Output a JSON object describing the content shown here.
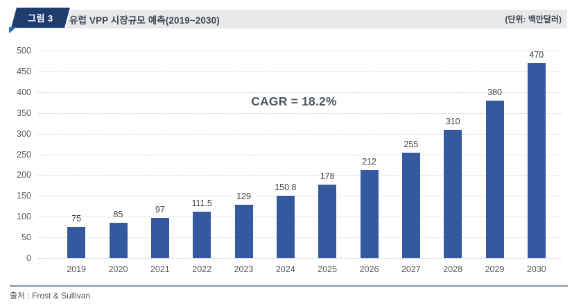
{
  "header": {
    "badge_label": "그림 3",
    "title": "유럽 VPP 시장규모 예측(2019~2030)",
    "unit_label": "(단위: 백만달러)"
  },
  "annotation": {
    "cagr": "CAGR = 18.2%"
  },
  "footer": {
    "source": "출처 : Frost & Sullivan"
  },
  "colors": {
    "bar": "#35599E",
    "badge_navy": "#1E3C6E",
    "badge_fold": "#3170B4",
    "header_bar_bg": "#E9E9EB",
    "footer_line": "#8293AA",
    "gridline": "#CFCFCF"
  },
  "chart_data": {
    "type": "bar",
    "title": "유럽 VPP 시장규모 예측(2019~2030)",
    "unit": "백만달러",
    "categories": [
      "2019",
      "2020",
      "2021",
      "2022",
      "2023",
      "2024",
      "2025",
      "2026",
      "2027",
      "2028",
      "2029",
      "2030"
    ],
    "values": [
      75,
      85,
      97,
      111.5,
      129,
      150.8,
      178,
      212,
      255,
      310,
      380,
      470
    ],
    "data_labels": [
      "75",
      "85",
      "97",
      "111.5",
      "129",
      "150.8",
      "178",
      "212",
      "255",
      "310",
      "380",
      "470"
    ],
    "xlabel": "",
    "ylabel": "",
    "ylim": [
      0,
      500
    ],
    "ytick_step": 50,
    "yticks": [
      0,
      50,
      100,
      150,
      200,
      250,
      300,
      350,
      400,
      450,
      500
    ],
    "grid": "horizontal-dotted",
    "legend": "none",
    "annotation": "CAGR = 18.2%",
    "bar_color": "#35599E"
  }
}
